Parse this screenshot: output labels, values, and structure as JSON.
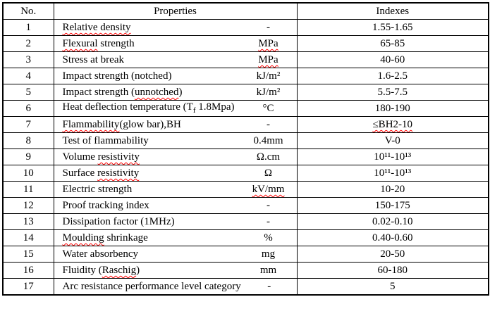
{
  "colors": {
    "border": "#000000",
    "text": "#000000",
    "background": "#ffffff",
    "spellcheck_squiggle": "#ff0000"
  },
  "table": {
    "headers": {
      "no": "No.",
      "properties": "Properties",
      "indexes": "Indexes"
    },
    "rows": [
      {
        "no": "1",
        "property": [
          {
            "t": "Relative density",
            "w": true
          }
        ],
        "unit": {
          "t": "-",
          "w": false
        },
        "index": {
          "t": "1.55-1.65",
          "w": false
        }
      },
      {
        "no": "2",
        "property": [
          {
            "t": "Flexural",
            "w": true
          },
          {
            "t": " strength",
            "w": false
          }
        ],
        "unit": {
          "t": "MPa",
          "w": true
        },
        "index": {
          "t": "65-85",
          "w": false
        }
      },
      {
        "no": "3",
        "property": [
          {
            "t": "Stress at break",
            "w": false
          }
        ],
        "unit": {
          "t": "MPa",
          "w": true
        },
        "index": {
          "t": "40-60",
          "w": false
        }
      },
      {
        "no": "4",
        "property": [
          {
            "t": "Impact strength (notched)",
            "w": false
          }
        ],
        "unit": {
          "t": "kJ/m²",
          "w": false
        },
        "index": {
          "t": "1.6-2.5",
          "w": false
        }
      },
      {
        "no": "5",
        "property": [
          {
            "t": "Impact strength (",
            "w": false
          },
          {
            "t": "unnotched",
            "w": true
          },
          {
            "t": ")",
            "w": false
          }
        ],
        "unit": {
          "t": "kJ/m²",
          "w": false
        },
        "index": {
          "t": "5.5-7.5",
          "w": false
        }
      },
      {
        "no": "6",
        "property": [
          {
            "t": "Heat deflection temperature (T",
            "w": false
          },
          {
            "t": "f",
            "w": false,
            "sub": true
          },
          {
            "t": " 1.8Mpa)",
            "w": false
          }
        ],
        "unit": {
          "t": "°C",
          "w": false
        },
        "index": {
          "t": "180-190",
          "w": false
        }
      },
      {
        "no": "7",
        "property": [
          {
            "t": "Flammability",
            "w": true
          },
          {
            "t": "(glow bar),BH",
            "w": false
          }
        ],
        "unit": {
          "t": "-",
          "w": false
        },
        "index": {
          "t": "≤BH2-10",
          "w": true
        }
      },
      {
        "no": "8",
        "property": [
          {
            "t": "Test of flammability",
            "w": false
          }
        ],
        "unit": {
          "t": "0.4mm",
          "w": false
        },
        "index": {
          "t": "V-0",
          "w": false
        }
      },
      {
        "no": "9",
        "property": [
          {
            "t": "Volume ",
            "w": false
          },
          {
            "t": "resistivity",
            "w": true
          }
        ],
        "unit": {
          "t": "Ω.cm",
          "w": false
        },
        "index": {
          "t": "10¹¹-10¹³",
          "w": false
        }
      },
      {
        "no": "10",
        "property": [
          {
            "t": "Surface ",
            "w": false
          },
          {
            "t": "resistivity",
            "w": true
          }
        ],
        "unit": {
          "t": "Ω",
          "w": false
        },
        "index": {
          "t": "10¹¹-10¹³",
          "w": false
        }
      },
      {
        "no": "11",
        "property": [
          {
            "t": "Electric strength",
            "w": false
          }
        ],
        "unit": {
          "t": "kV/mm",
          "w": true
        },
        "index": {
          "t": "10-20",
          "w": false
        }
      },
      {
        "no": "12",
        "property": [
          {
            "t": "Proof tracking index",
            "w": false
          }
        ],
        "unit": {
          "t": "-",
          "w": false
        },
        "index": {
          "t": "150-175",
          "w": false
        }
      },
      {
        "no": "13",
        "property": [
          {
            "t": "Dissipation factor (1MHz)",
            "w": false
          }
        ],
        "unit": {
          "t": "-",
          "w": false
        },
        "index": {
          "t": "0.02-0.10",
          "w": false
        }
      },
      {
        "no": "14",
        "property": [
          {
            "t": "Moulding",
            "w": true
          },
          {
            "t": " shrinkage",
            "w": false
          }
        ],
        "unit": {
          "t": "%",
          "w": false
        },
        "index": {
          "t": "0.40-0.60",
          "w": false
        }
      },
      {
        "no": "15",
        "property": [
          {
            "t": "Water absorbency",
            "w": false
          }
        ],
        "unit": {
          "t": "mg",
          "w": false
        },
        "index": {
          "t": "20-50",
          "w": false
        }
      },
      {
        "no": "16",
        "property": [
          {
            "t": "Fluidity (",
            "w": false
          },
          {
            "t": "Raschig",
            "w": true
          },
          {
            "t": ")",
            "w": false
          }
        ],
        "unit": {
          "t": "mm",
          "w": false
        },
        "index": {
          "t": "60-180",
          "w": false
        }
      },
      {
        "no": "17",
        "property": [
          {
            "t": "Arc resistance performance level category",
            "w": false
          }
        ],
        "unit": {
          "t": "-",
          "w": false
        },
        "index": {
          "t": "5",
          "w": false
        }
      }
    ]
  }
}
